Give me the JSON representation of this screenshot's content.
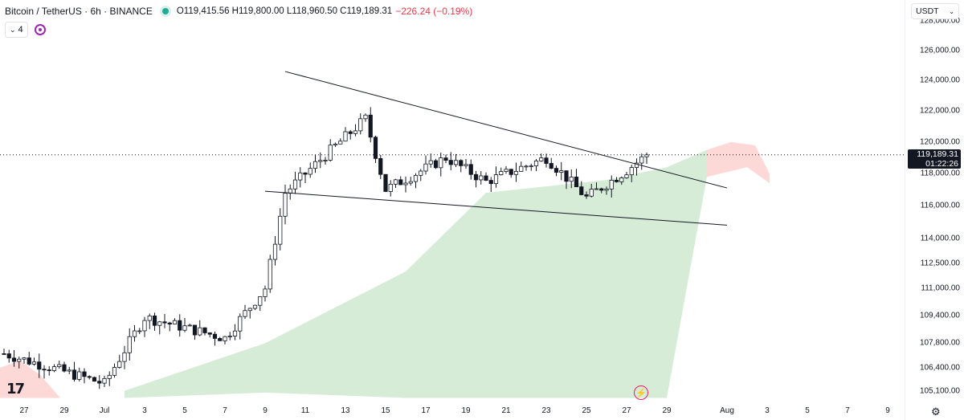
{
  "header": {
    "symbol_title": "Bitcoin / TetherUS · 6h · BINANCE",
    "ohlc": "O119,415.56 H119,800.00 L118,960.50 C119,189.31",
    "change": "−226.24 (−0.19%)",
    "indicator_count": "4",
    "currency": "USDT"
  },
  "icons": {
    "market_status": "green-dot-icon",
    "indicator_toggle": "chevron-down-icon",
    "sync": "sync-icon",
    "logo": "tradingview-logo-icon",
    "replay": "lightning-icon",
    "settings": "gear-icon"
  },
  "colors": {
    "up": "#ffffff",
    "up_border": "#131722",
    "down": "#131722",
    "cloud_bull": "#c8e6c9",
    "cloud_bear": "#fbd0cc",
    "trendline": "#131722",
    "last_price_bg": "#131722",
    "status_dot": "#22ab94",
    "change_negative": "#f23645"
  },
  "price_axis": {
    "labels": [
      "128,000.00",
      "126,000.00",
      "124,000.00",
      "122,000.00",
      "120,000.00",
      "118,000.00",
      "116,000.00",
      "114,000.00",
      "112,500.00",
      "111,000.00",
      "109,400.00",
      "107,800.00",
      "106,400.00",
      "105,100.00"
    ],
    "last_price": "119,189.31",
    "countdown": "01:22:26"
  },
  "time_axis": {
    "labels": [
      "27",
      "29",
      "Jul",
      "3",
      "5",
      "7",
      "9",
      "11",
      "13",
      "15",
      "17",
      "19",
      "21",
      "23",
      "25",
      "27",
      "29",
      "Aug",
      "3",
      "5",
      "7",
      "9"
    ]
  },
  "chart_data": {
    "type": "candlestick",
    "symbol": "BTC/USDT",
    "interval": "6h",
    "yscale": "log",
    "ylim": [
      104500,
      129000
    ],
    "x_range": [
      "Jun 26",
      "Aug 10"
    ],
    "last_close": 119189.31,
    "key_points": [
      {
        "date": "Jun 26",
        "close": 107200
      },
      {
        "date": "Jul 1",
        "close": 105500
      },
      {
        "date": "Jul 3",
        "close": 109300
      },
      {
        "date": "Jul 7",
        "close": 108100
      },
      {
        "date": "Jul 9",
        "close": 111000
      },
      {
        "date": "Jul 10",
        "close": 116800
      },
      {
        "date": "Jul 11",
        "close": 118000
      },
      {
        "date": "Jul 14",
        "high": 123200,
        "close": 121500
      },
      {
        "date": "Jul 15",
        "low": 115800,
        "close": 117000
      },
      {
        "date": "Jul 18",
        "high": 120800,
        "close": 119000
      },
      {
        "date": "Jul 20",
        "close": 117500
      },
      {
        "date": "Jul 23",
        "high": 120300,
        "close": 119000
      },
      {
        "date": "Jul 25",
        "low": 114800,
        "close": 116500
      },
      {
        "date": "Jul 27",
        "close": 118200
      },
      {
        "date": "Jul 28",
        "high": 119900,
        "close": 119189.31
      }
    ],
    "trendlines": [
      {
        "from": {
          "date": "Jul 10",
          "value": 124600
        },
        "to": {
          "date": "Aug 1",
          "value": 117100
        }
      },
      {
        "from": {
          "date": "Jul 9",
          "value": 116900
        },
        "to": {
          "date": "Aug 1",
          "value": 114800
        }
      }
    ],
    "ichimoku_cloud": [
      {
        "date": "Jul 2",
        "top": 105100,
        "bottom": 104700
      },
      {
        "date": "Jul 9",
        "top": 107800,
        "bottom": 105000
      },
      {
        "date": "Jul 16",
        "top": 112000,
        "bottom": 104700
      },
      {
        "date": "Jul 20",
        "top": 116800,
        "bottom": 104700
      },
      {
        "date": "Jul 26",
        "top": 117600,
        "bottom": 104700
      },
      {
        "date": "Jul 29",
        "top": 118400,
        "bottom": 104700
      },
      {
        "date": "Jul 31",
        "top": 119500,
        "bottom": 117800
      }
    ]
  }
}
